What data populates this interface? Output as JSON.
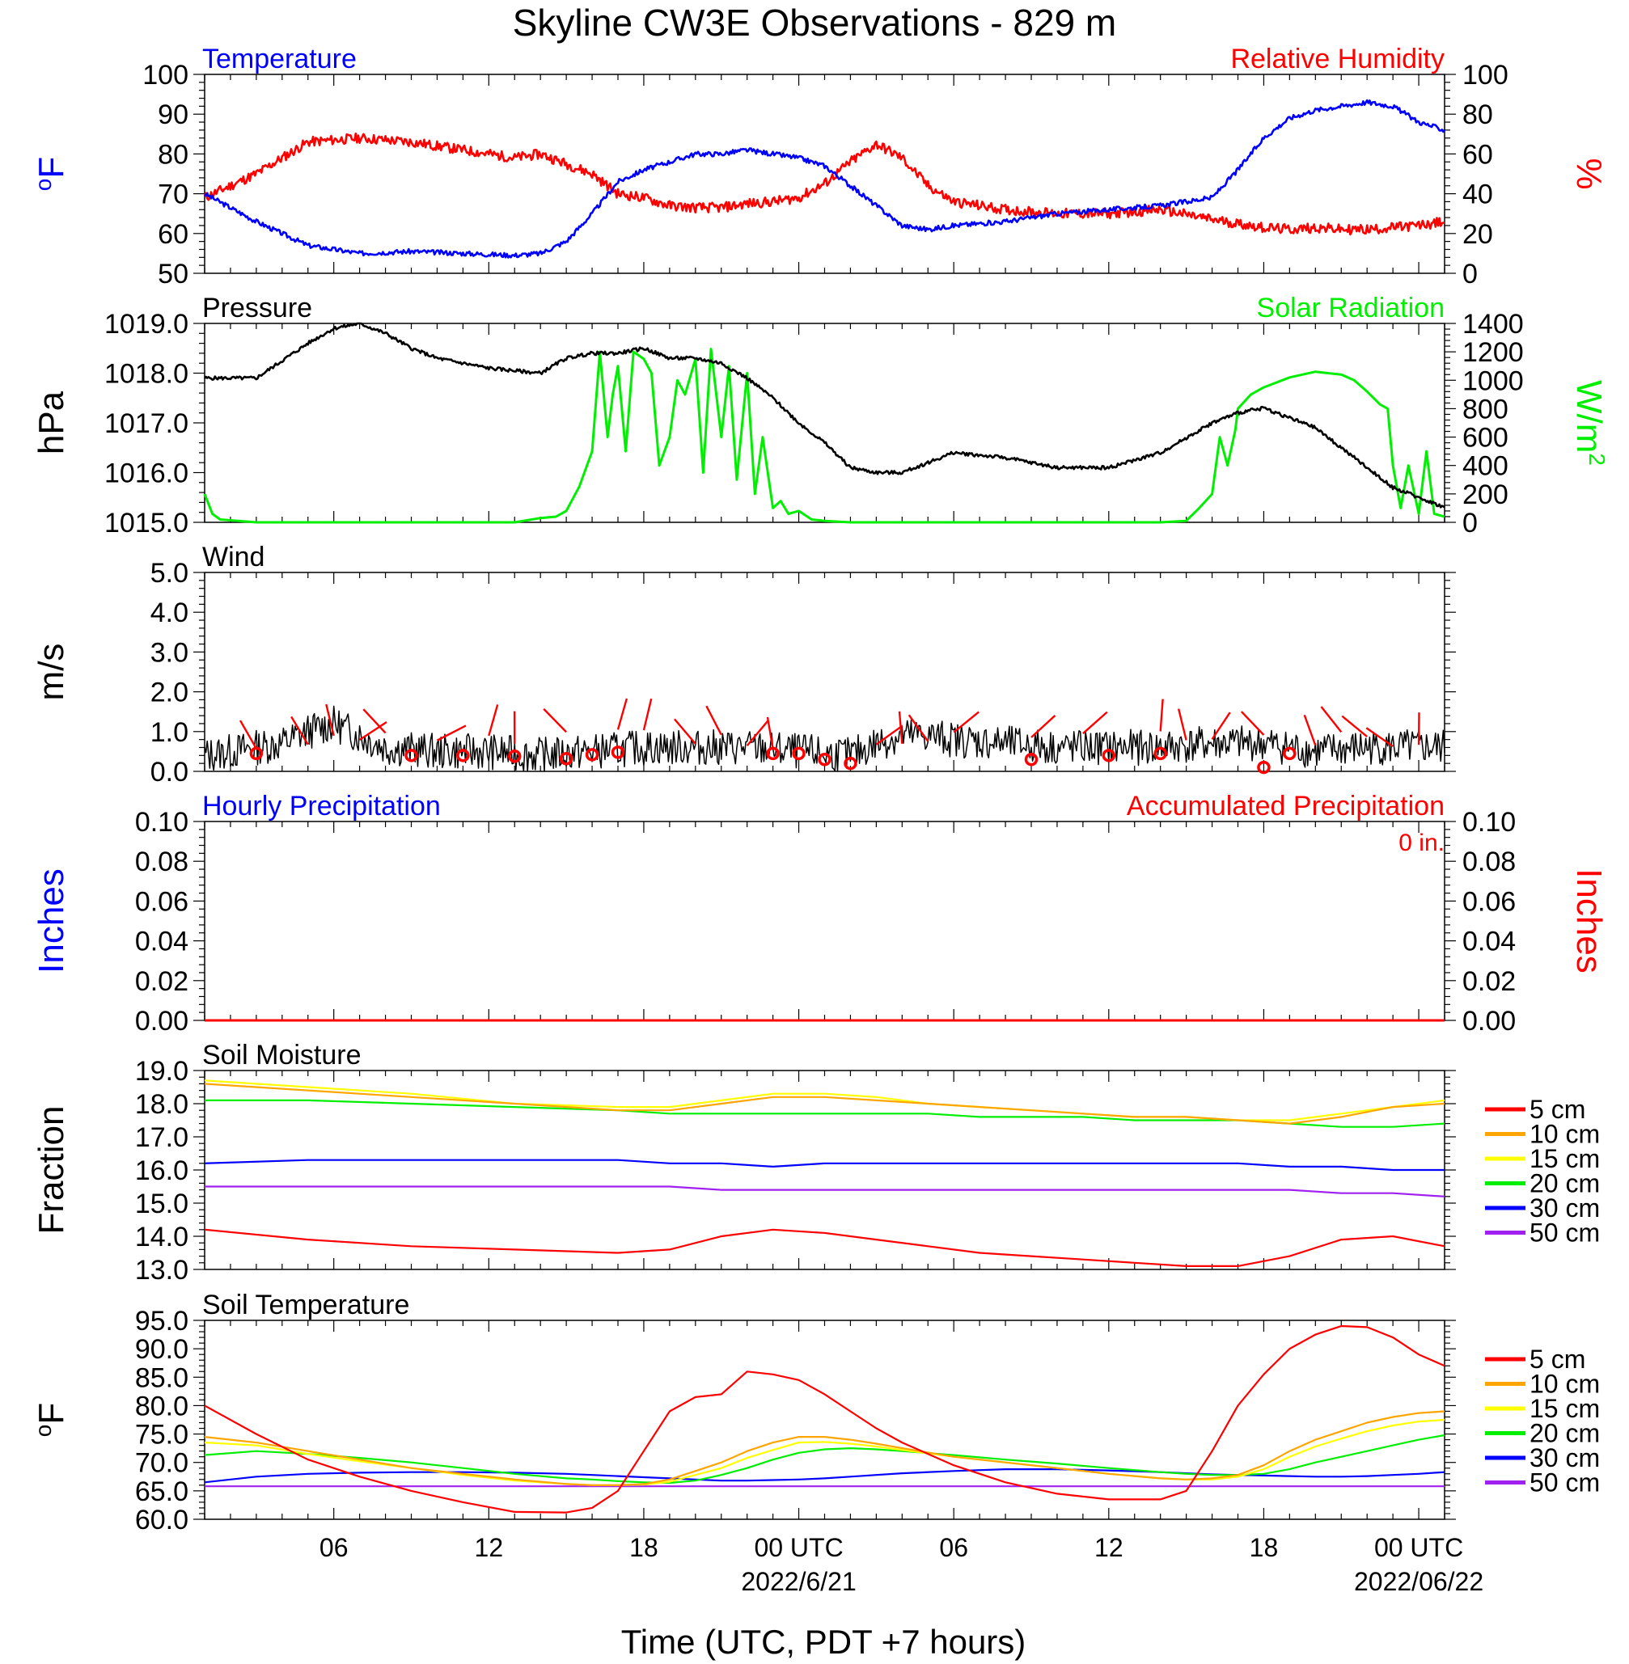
{
  "title": "Skyline CW3E Observations - 829 m",
  "xlabel": "Time (UTC, PDT +7 hours)",
  "x_ticks": [
    "06",
    "12",
    "18",
    "00 UTC",
    "06",
    "12",
    "18",
    "00 UTC"
  ],
  "x_dates": [
    "2022/6/21",
    "2022/06/22"
  ],
  "colors": {
    "blue": "#0000ff",
    "red": "#ff0000",
    "green": "#00ee00",
    "black": "#000000",
    "orange": "#ffa500",
    "yellow": "#ffff00",
    "purple": "#a020f0"
  },
  "legend": [
    "5 cm",
    "10 cm",
    "15 cm",
    "20 cm",
    "30 cm",
    "50 cm"
  ],
  "chart_data": [
    {
      "type": "line",
      "panel": "temperature_rh",
      "title_left": "Temperature",
      "title_right": "Relative Humidity",
      "ylabel_left": "oF",
      "ylabel_right": "%",
      "ylim_left": [
        50,
        100
      ],
      "ylim_right": [
        0,
        100
      ],
      "yticks_left": [
        "100",
        "90",
        "80",
        "70",
        "60",
        "50"
      ],
      "yticks_right": [
        "100",
        "80",
        "60",
        "40",
        "20",
        "0"
      ],
      "x_hours": [
        1,
        3,
        5,
        7,
        9,
        11,
        13,
        14,
        15,
        16,
        17,
        18,
        19,
        20,
        21,
        22,
        23,
        24,
        25,
        26,
        27,
        28,
        29,
        30,
        32,
        34,
        36,
        38,
        40,
        41,
        42,
        43,
        44,
        45,
        46,
        47,
        48,
        49
      ],
      "series": [
        {
          "name": "Temperature",
          "axis": "left",
          "values": [
            70,
            63,
            57,
            55,
            55.5,
            55,
            54.5,
            55,
            58,
            65,
            73,
            76,
            78,
            80,
            80,
            81,
            80,
            79,
            77,
            72,
            67,
            62,
            61,
            62,
            63,
            65,
            66,
            67,
            69,
            76,
            84,
            89,
            91,
            92,
            93,
            92,
            88,
            86
          ]
        },
        {
          "name": "Relative Humidity",
          "axis": "right",
          "values": [
            38,
            50,
            66,
            68,
            66,
            62,
            58,
            60,
            55,
            50,
            40,
            38,
            34,
            33,
            33,
            35,
            36,
            38,
            45,
            56,
            65,
            58,
            44,
            36,
            32,
            30,
            30,
            32,
            27,
            25,
            23,
            22,
            23,
            22,
            22,
            23,
            24,
            26
          ]
        }
      ]
    },
    {
      "type": "line",
      "panel": "pressure_solar",
      "title_left": "Pressure",
      "title_right": "Solar Radiation",
      "ylabel_left": "hPa",
      "ylabel_right": "W/m2",
      "ylim_left": [
        1015,
        1019
      ],
      "ylim_right": [
        0,
        1400
      ],
      "yticks_left": [
        "1019.0",
        "1018.0",
        "1017.0",
        "1016.0",
        "1015.0"
      ],
      "yticks_right": [
        "1400",
        "1200",
        "1000",
        "800",
        "600",
        "400",
        "200",
        "0"
      ],
      "series": [
        {
          "name": "Pressure",
          "axis": "left",
          "x": [
            1,
            3,
            5,
            6,
            7,
            8,
            9,
            10,
            12,
            13,
            14,
            15,
            16,
            17,
            18,
            19,
            20,
            21,
            22,
            23,
            24,
            25,
            26,
            27,
            28,
            30,
            32,
            34,
            36,
            38,
            40,
            41,
            42,
            43,
            44,
            45,
            46,
            47,
            48,
            49
          ],
          "values": [
            1017.9,
            1017.9,
            1018.6,
            1018.9,
            1019.0,
            1018.8,
            1018.5,
            1018.3,
            1018.1,
            1018.05,
            1018.0,
            1018.3,
            1018.4,
            1018.4,
            1018.5,
            1018.3,
            1018.3,
            1018.2,
            1017.9,
            1017.5,
            1017.0,
            1016.6,
            1016.1,
            1016.0,
            1016.0,
            1016.4,
            1016.3,
            1016.1,
            1016.1,
            1016.4,
            1017.0,
            1017.2,
            1017.3,
            1017.1,
            1016.9,
            1016.5,
            1016.1,
            1015.7,
            1015.5,
            1015.3
          ]
        },
        {
          "name": "Solar Radiation",
          "axis": "right",
          "x": [
            1,
            1.3,
            1.6,
            3,
            8,
            12,
            13,
            14,
            14.6,
            15,
            15.5,
            16,
            16.3,
            16.6,
            16.8,
            17,
            17.3,
            17.6,
            18,
            18.3,
            18.6,
            19,
            19.3,
            19.6,
            20,
            20.3,
            20.6,
            21,
            21.3,
            21.6,
            22,
            22.3,
            22.6,
            23,
            23.3,
            23.6,
            24,
            24.5,
            25,
            26,
            27,
            28,
            30,
            36,
            38,
            39,
            39.5,
            40,
            40.3,
            40.6,
            40.9,
            41,
            41.5,
            42,
            43,
            44,
            45,
            45.5,
            46,
            46.5,
            46.8,
            47,
            47.3,
            47.6,
            48,
            48.3,
            48.6,
            49
          ],
          "values": [
            200,
            60,
            20,
            0,
            0,
            0,
            0,
            30,
            40,
            80,
            250,
            500,
            1200,
            600,
            900,
            1100,
            500,
            1200,
            1150,
            1050,
            400,
            600,
            1000,
            900,
            1150,
            350,
            1220,
            600,
            1100,
            300,
            1050,
            200,
            600,
            100,
            150,
            60,
            80,
            20,
            10,
            0,
            0,
            0,
            0,
            0,
            0,
            10,
            100,
            200,
            600,
            400,
            650,
            800,
            900,
            950,
            1020,
            1060,
            1040,
            1000,
            920,
            830,
            800,
            400,
            100,
            400,
            60,
            500,
            60,
            40
          ]
        }
      ]
    },
    {
      "type": "line",
      "panel": "wind",
      "title_left": "Wind",
      "ylabel_left": "m/s",
      "ylim_left": [
        0,
        5
      ],
      "yticks_left": [
        "5.0",
        "4.0",
        "3.0",
        "2.0",
        "1.0",
        "0.0"
      ],
      "series": [
        {
          "name": "Wind",
          "x": [
            1,
            3,
            4,
            5,
            6,
            7,
            8,
            10,
            12,
            14,
            16,
            18,
            20,
            22,
            24,
            26,
            27,
            28,
            29,
            30,
            32,
            34,
            36,
            38,
            40,
            42,
            44,
            46,
            48,
            49
          ],
          "values": [
            0.4,
            0.6,
            0.7,
            1.0,
            1.2,
            0.9,
            0.6,
            0.5,
            0.5,
            0.4,
            0.5,
            0.6,
            0.6,
            0.6,
            0.5,
            0.4,
            0.7,
            0.9,
            0.9,
            0.8,
            0.7,
            0.6,
            0.6,
            0.6,
            0.7,
            0.7,
            0.5,
            0.6,
            0.6,
            0.6
          ]
        }
      ],
      "calm_markers_hours": [
        3,
        9,
        11,
        13,
        15,
        16,
        17,
        23,
        24,
        25,
        26,
        33,
        36,
        38,
        42,
        43
      ],
      "calm_marker_values": [
        0.45,
        0.4,
        0.4,
        0.38,
        0.32,
        0.42,
        0.48,
        0.45,
        0.45,
        0.3,
        0.2,
        0.3,
        0.4,
        0.45,
        0.1,
        0.45
      ],
      "wind_barbs_hours": [
        3,
        5,
        6,
        7,
        8,
        10,
        12,
        13,
        15,
        17,
        18,
        20,
        21,
        22,
        23,
        27,
        28,
        29,
        30,
        33,
        35,
        38,
        39,
        40,
        42,
        44,
        45,
        46,
        47,
        48
      ]
    },
    {
      "type": "line",
      "panel": "precipitation",
      "title_left": "Hourly Precipitation",
      "title_right": "Accumulated Precipitation",
      "total_label": "0 in.",
      "ylabel_left": "Inches",
      "ylabel_right": "Inches",
      "ylim_left": [
        0,
        0.1
      ],
      "ylim_right": [
        0,
        0.1
      ],
      "yticks_left": [
        "0.10",
        "0.08",
        "0.06",
        "0.04",
        "0.02",
        "0.00"
      ],
      "yticks_right": [
        "0.10",
        "0.08",
        "0.06",
        "0.04",
        "0.02",
        "0.00"
      ],
      "series": [
        {
          "name": "Hourly Precipitation",
          "x": [
            1,
            49
          ],
          "values": [
            0,
            0
          ]
        },
        {
          "name": "Accumulated Precipitation",
          "x": [
            1,
            49
          ],
          "values": [
            0,
            0
          ]
        }
      ]
    },
    {
      "type": "line",
      "panel": "soil_moisture",
      "title_left": "Soil Moisture",
      "ylabel_left": "Fraction",
      "ylim_left": [
        13,
        19
      ],
      "yticks_left": [
        "19.0",
        "18.0",
        "17.0",
        "16.0",
        "15.0",
        "14.0",
        "13.0"
      ],
      "x_hours": [
        1,
        5,
        9,
        13,
        17,
        19,
        21,
        23,
        25,
        27,
        29,
        31,
        33,
        35,
        37,
        39,
        41,
        43,
        45,
        47,
        49
      ],
      "series": [
        {
          "name": "5 cm",
          "values": [
            14.2,
            13.9,
            13.7,
            13.6,
            13.5,
            13.6,
            14.0,
            14.2,
            14.1,
            13.9,
            13.7,
            13.5,
            13.4,
            13.3,
            13.2,
            13.1,
            13.1,
            13.4,
            13.9,
            14.0,
            13.7
          ]
        },
        {
          "name": "10 cm",
          "values": [
            18.6,
            18.4,
            18.2,
            18.0,
            17.8,
            17.8,
            18.0,
            18.2,
            18.2,
            18.1,
            18.0,
            17.9,
            17.8,
            17.7,
            17.6,
            17.6,
            17.5,
            17.4,
            17.6,
            17.9,
            18.0
          ]
        },
        {
          "name": "15 cm",
          "values": [
            18.7,
            18.5,
            18.3,
            18.0,
            17.9,
            17.9,
            18.1,
            18.3,
            18.3,
            18.2,
            18.0,
            17.9,
            17.8,
            17.7,
            17.6,
            17.6,
            17.5,
            17.5,
            17.7,
            17.9,
            18.1
          ]
        },
        {
          "name": "20 cm",
          "values": [
            18.1,
            18.1,
            18.0,
            17.9,
            17.8,
            17.7,
            17.7,
            17.7,
            17.7,
            17.7,
            17.7,
            17.6,
            17.6,
            17.6,
            17.5,
            17.5,
            17.5,
            17.4,
            17.3,
            17.3,
            17.4
          ]
        },
        {
          "name": "30 cm",
          "values": [
            16.2,
            16.3,
            16.3,
            16.3,
            16.3,
            16.2,
            16.2,
            16.1,
            16.2,
            16.2,
            16.2,
            16.2,
            16.2,
            16.2,
            16.2,
            16.2,
            16.2,
            16.1,
            16.1,
            16.0,
            16.0
          ]
        },
        {
          "name": "50 cm",
          "values": [
            15.5,
            15.5,
            15.5,
            15.5,
            15.5,
            15.5,
            15.4,
            15.4,
            15.4,
            15.4,
            15.4,
            15.4,
            15.4,
            15.4,
            15.4,
            15.4,
            15.4,
            15.4,
            15.3,
            15.3,
            15.2
          ]
        }
      ]
    },
    {
      "type": "line",
      "panel": "soil_temperature",
      "title_left": "Soil Temperature",
      "ylabel_left": "oF",
      "ylim_left": [
        60,
        95
      ],
      "yticks_left": [
        "95.0",
        "90.0",
        "85.0",
        "80.0",
        "75.0",
        "70.0",
        "65.0",
        "60.0"
      ],
      "x_hours": [
        1,
        3,
        5,
        7,
        9,
        11,
        13,
        15,
        16,
        17,
        18,
        19,
        20,
        21,
        22,
        23,
        24,
        25,
        26,
        27,
        28,
        30,
        32,
        34,
        36,
        38,
        39,
        40,
        41,
        42,
        43,
        44,
        45,
        46,
        47,
        48,
        49
      ],
      "series": [
        {
          "name": "5 cm",
          "values": [
            80,
            75,
            70.5,
            67.5,
            65,
            63,
            61.3,
            61.2,
            62,
            65,
            72,
            79,
            81.5,
            82,
            86,
            85.5,
            84.5,
            82,
            79,
            76,
            73.5,
            69.5,
            66.5,
            64.5,
            63.5,
            63.5,
            65,
            72,
            80,
            85.5,
            90,
            92.5,
            94,
            93.8,
            92,
            89,
            87
          ]
        },
        {
          "name": "10 cm",
          "values": [
            74.5,
            73.5,
            72,
            70.5,
            69,
            68,
            67,
            66.2,
            66,
            66,
            66.2,
            67,
            68.5,
            70,
            72,
            73.5,
            74.5,
            74.5,
            74,
            73.3,
            72.5,
            71,
            70,
            69,
            68,
            67.2,
            67,
            67.2,
            67.8,
            69.5,
            72,
            74,
            75.5,
            77,
            78,
            78.7,
            79
          ]
        },
        {
          "name": "15 cm",
          "values": [
            73.5,
            73,
            71.5,
            70.2,
            69,
            67.8,
            66.8,
            66.2,
            66,
            66,
            66.1,
            66.6,
            67.8,
            69,
            70.8,
            72.2,
            73.5,
            73.6,
            73.3,
            72.8,
            72.2,
            71,
            70,
            69,
            68,
            67.2,
            67,
            67,
            67.5,
            68.8,
            71,
            72.8,
            74.2,
            75.5,
            76.5,
            77.2,
            77.5
          ]
        },
        {
          "name": "20 cm",
          "values": [
            71.3,
            72,
            71.5,
            70.8,
            70,
            69,
            68,
            67.2,
            67,
            66.7,
            66.5,
            66.4,
            66.8,
            67.8,
            69,
            70.5,
            71.7,
            72.3,
            72.5,
            72.3,
            72,
            71.3,
            70.5,
            69.8,
            69,
            68.3,
            68,
            67.8,
            67.8,
            68,
            68.8,
            70,
            71,
            72,
            73,
            74,
            74.8
          ]
        },
        {
          "name": "30 cm",
          "values": [
            66.5,
            67.5,
            68,
            68.2,
            68.3,
            68.3,
            68.2,
            68,
            67.8,
            67.6,
            67.4,
            67.2,
            67,
            66.8,
            66.8,
            66.9,
            67,
            67.2,
            67.5,
            67.8,
            68.1,
            68.5,
            68.8,
            68.8,
            68.6,
            68.3,
            68.1,
            67.9,
            67.8,
            67.7,
            67.6,
            67.5,
            67.5,
            67.6,
            67.8,
            68,
            68.3
          ]
        },
        {
          "name": "50 cm",
          "values": [
            65.8,
            65.8,
            65.8,
            65.8,
            65.8,
            65.8,
            65.8,
            65.8,
            65.8,
            65.8,
            65.8,
            65.8,
            65.8,
            65.8,
            65.8,
            65.8,
            65.8,
            65.8,
            65.8,
            65.8,
            65.8,
            65.8,
            65.8,
            65.8,
            65.8,
            65.8,
            65.8,
            65.8,
            65.8,
            65.8,
            65.8,
            65.8,
            65.8,
            65.8,
            65.8,
            65.8,
            65.8
          ]
        }
      ]
    }
  ]
}
